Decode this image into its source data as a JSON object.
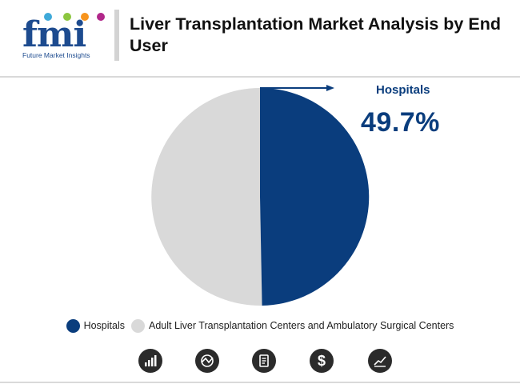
{
  "header": {
    "logo_text": "fmi",
    "logo_subtitle": "Future Market Insights",
    "title": "Liver Transplantation Market Analysis by End User"
  },
  "colors": {
    "hospitals": "#0a3d7d",
    "adult_centers": "#d9d9d9",
    "icon_bg": "#2b2b2b"
  },
  "chart_data": {
    "type": "pie",
    "title": "",
    "labels": [
      "Hospitals",
      "Adult Liver Transplantation Centers and Ambulatory Surgical Centers"
    ],
    "values": [
      49.7,
      50.3
    ],
    "units": "%",
    "legend_position": "bottom",
    "callout": {
      "label": "Hospitals",
      "value": "49.7%"
    }
  },
  "footer_icons": [
    "bar-chart-icon",
    "globe-chart-icon",
    "document-icon",
    "dollar-icon",
    "trend-chart-icon"
  ],
  "footer_dollar_glyph": "$"
}
